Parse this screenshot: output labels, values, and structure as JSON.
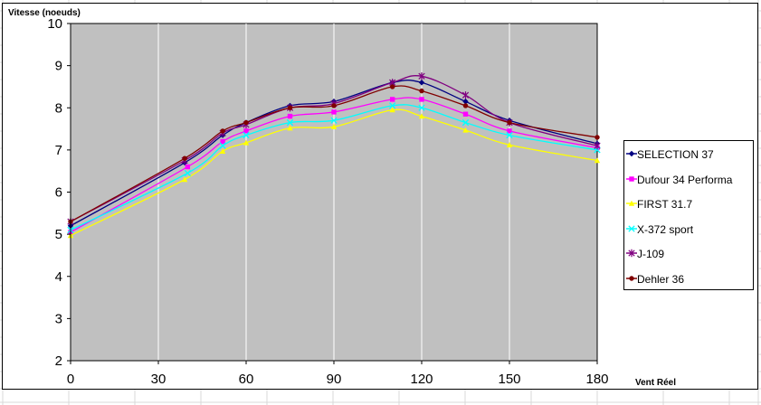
{
  "colors": {
    "plot_background": "#c0c0c0",
    "gridline": "#ffffff",
    "axis": "#000000",
    "sheet_grid": "#d9d9d9"
  },
  "chart_data": {
    "type": "line",
    "ylabel": "Vitesse (noeuds)",
    "xlabel": "Vent Réel",
    "xlim": [
      0,
      180
    ],
    "ylim": [
      2,
      10
    ],
    "x_ticks": [
      0,
      30,
      60,
      90,
      120,
      150,
      180
    ],
    "y_ticks": [
      2,
      3,
      4,
      5,
      6,
      7,
      8,
      9,
      10
    ],
    "x_tick_labels": [
      "0",
      "30",
      "60",
      "90",
      "120",
      "150",
      "180"
    ],
    "y_tick_labels": [
      "2",
      "3",
      "4",
      "5",
      "6",
      "7",
      "8",
      "9",
      "10"
    ],
    "grid": true,
    "legend_position": "right",
    "series": [
      {
        "name": "SELECTION 37",
        "color": "#000080",
        "marker": "diamond",
        "points": [
          [
            0,
            5.2
          ],
          [
            39,
            6.7
          ],
          [
            52,
            7.35
          ],
          [
            60,
            7.65
          ],
          [
            75,
            8.05
          ],
          [
            90,
            8.15
          ],
          [
            110,
            8.6
          ],
          [
            120,
            8.6
          ],
          [
            135,
            8.15
          ],
          [
            150,
            7.7
          ],
          [
            180,
            7.15
          ]
        ]
      },
      {
        "name": "Dufour 34 Performa",
        "color": "#ff00ff",
        "marker": "square",
        "points": [
          [
            0,
            5.05
          ],
          [
            40,
            6.6
          ],
          [
            52,
            7.2
          ],
          [
            60,
            7.45
          ],
          [
            75,
            7.8
          ],
          [
            90,
            7.9
          ],
          [
            110,
            8.2
          ],
          [
            120,
            8.2
          ],
          [
            135,
            7.85
          ],
          [
            150,
            7.45
          ],
          [
            180,
            7.05
          ]
        ]
      },
      {
        "name": "FIRST 31.7",
        "color": "#ffff00",
        "marker": "triangle",
        "points": [
          [
            0,
            4.97
          ],
          [
            39,
            6.3
          ],
          [
            52,
            6.97
          ],
          [
            60,
            7.17
          ],
          [
            75,
            7.52
          ],
          [
            90,
            7.55
          ],
          [
            110,
            7.95
          ],
          [
            120,
            7.8
          ],
          [
            135,
            7.47
          ],
          [
            150,
            7.12
          ],
          [
            180,
            6.75
          ]
        ]
      },
      {
        "name": "X-372 sport",
        "color": "#00ffff",
        "marker": "x",
        "points": [
          [
            0,
            5.1
          ],
          [
            40,
            6.45
          ],
          [
            52,
            7.1
          ],
          [
            60,
            7.35
          ],
          [
            75,
            7.65
          ],
          [
            90,
            7.7
          ],
          [
            110,
            8.05
          ],
          [
            120,
            8.0
          ],
          [
            135,
            7.65
          ],
          [
            150,
            7.35
          ],
          [
            180,
            7.0
          ]
        ]
      },
      {
        "name": "J-109",
        "color": "#800080",
        "marker": "star",
        "points": [
          [
            0,
            5.3
          ],
          [
            39,
            6.75
          ],
          [
            52,
            7.4
          ],
          [
            60,
            7.6
          ],
          [
            75,
            8.0
          ],
          [
            90,
            8.1
          ],
          [
            110,
            8.6
          ],
          [
            120,
            8.75
          ],
          [
            135,
            8.3
          ],
          [
            150,
            7.65
          ],
          [
            180,
            7.1
          ]
        ]
      },
      {
        "name": "Dehler 36",
        "color": "#800000",
        "marker": "circle",
        "points": [
          [
            0,
            5.3
          ],
          [
            39,
            6.8
          ],
          [
            52,
            7.45
          ],
          [
            60,
            7.65
          ],
          [
            75,
            8.0
          ],
          [
            90,
            8.05
          ],
          [
            110,
            8.5
          ],
          [
            120,
            8.4
          ],
          [
            135,
            8.05
          ],
          [
            150,
            7.65
          ],
          [
            180,
            7.3
          ]
        ]
      }
    ]
  }
}
